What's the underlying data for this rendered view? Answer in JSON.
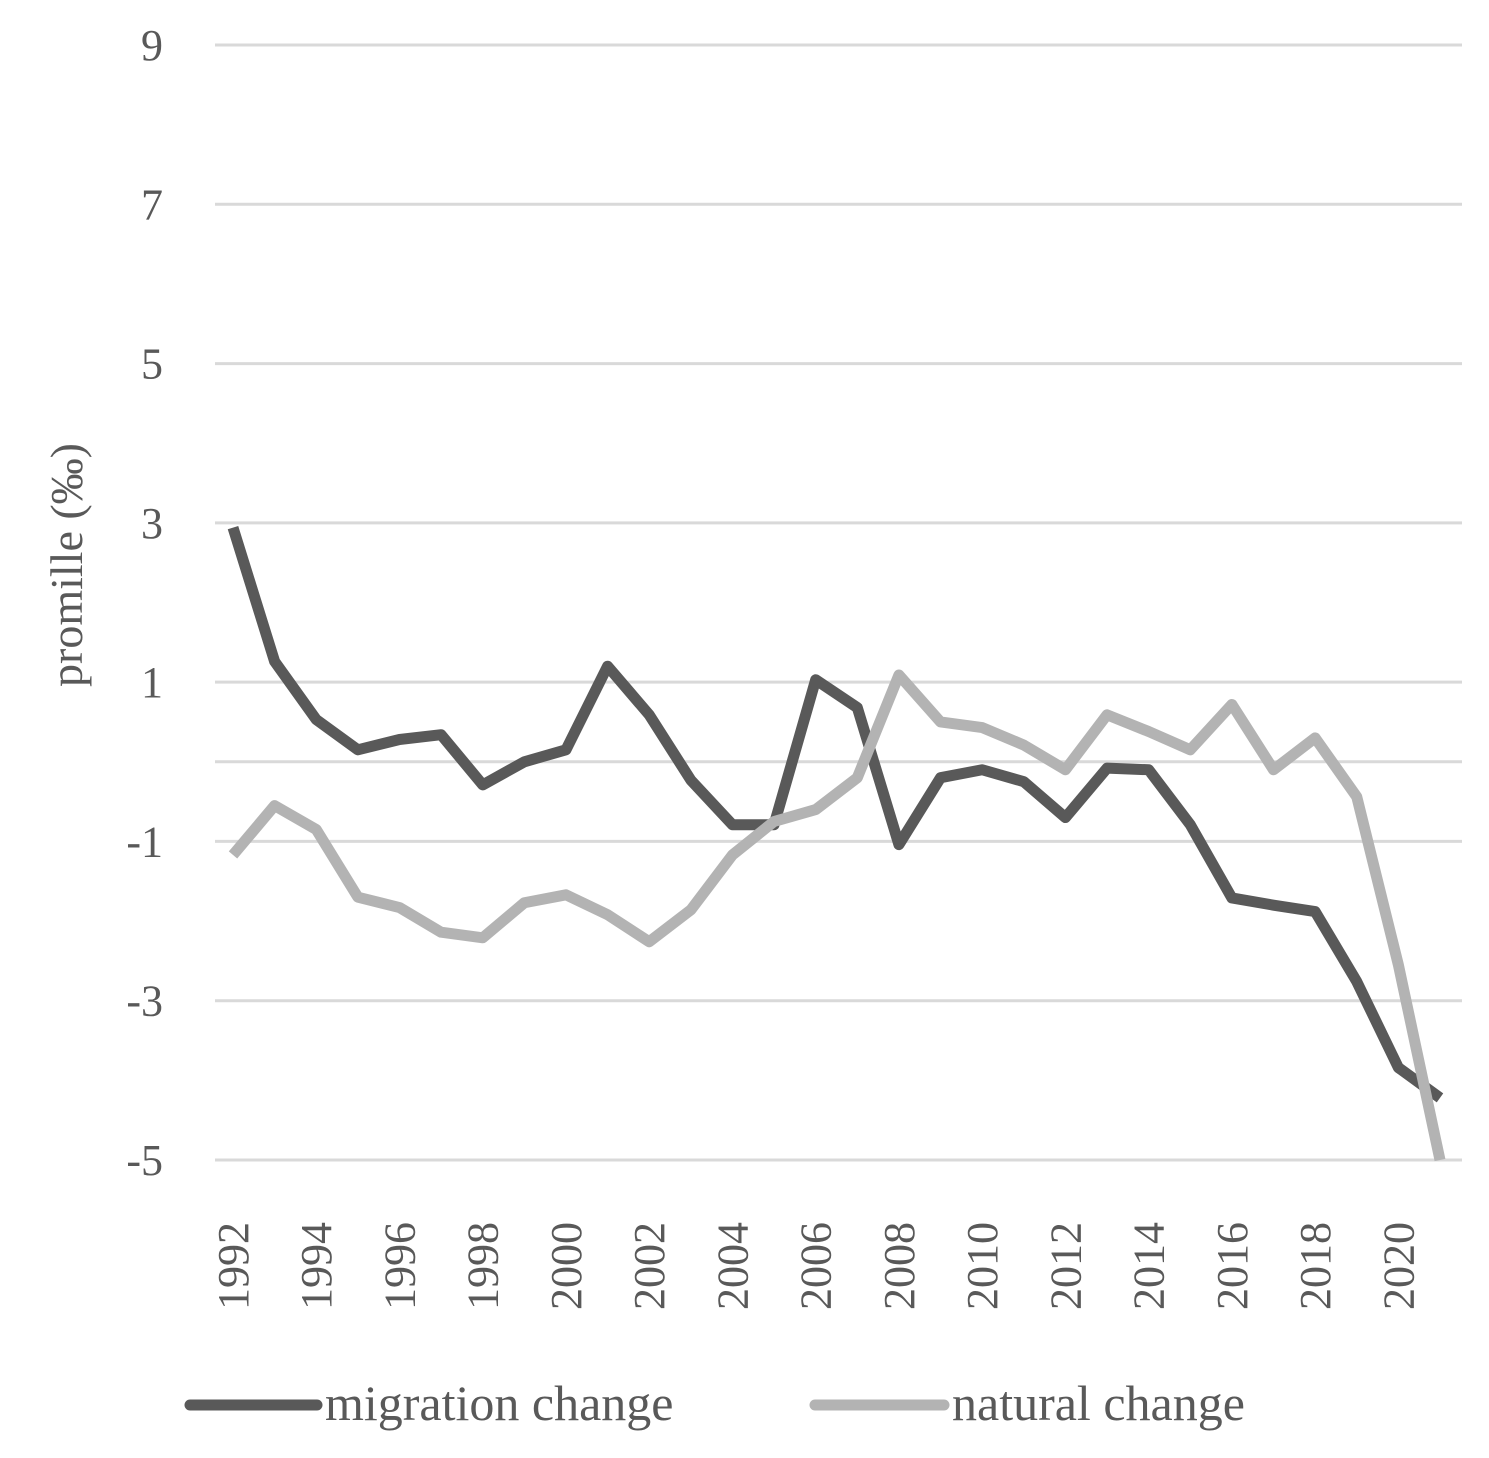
{
  "chart_data": {
    "type": "line",
    "title": "",
    "xlabel": "",
    "ylabel": "promille (‰)",
    "ylim": [
      -5,
      9
    ],
    "yticks": [
      9,
      7,
      5,
      3,
      1,
      -1,
      -3,
      -5
    ],
    "gridlines": [
      9,
      7,
      5,
      3,
      1,
      0,
      -1,
      -3,
      -5
    ],
    "x": [
      1992,
      1993,
      1994,
      1995,
      1996,
      1997,
      1998,
      1999,
      2000,
      2001,
      2002,
      2003,
      2004,
      2005,
      2006,
      2007,
      2008,
      2009,
      2010,
      2011,
      2012,
      2013,
      2014,
      2015,
      2016,
      2017,
      2018,
      2019,
      2020,
      2021
    ],
    "xtick_labels": [
      "1992",
      "1994",
      "1996",
      "1998",
      "2000",
      "2002",
      "2004",
      "2006",
      "2008",
      "2010",
      "2012",
      "2014",
      "2016",
      "2018",
      "2020"
    ],
    "legend_position": "bottom",
    "series": [
      {
        "name": "migration change",
        "color": "#595959",
        "values": [
          2.94,
          1.26,
          0.53,
          0.15,
          0.28,
          0.34,
          -0.29,
          0.0,
          0.15,
          1.2,
          0.59,
          -0.23,
          -0.79,
          -0.79,
          1.03,
          0.68,
          -1.04,
          -0.2,
          -0.1,
          -0.25,
          -0.7,
          -0.08,
          -0.1,
          -0.79,
          -1.71,
          -1.8,
          -1.88,
          -2.76,
          -3.84,
          -4.22
        ]
      },
      {
        "name": "natural change",
        "color": "#b3b3b3",
        "values": [
          -1.17,
          -0.55,
          -0.85,
          -1.7,
          -1.83,
          -2.14,
          -2.21,
          -1.77,
          -1.67,
          -1.92,
          -2.26,
          -1.86,
          -1.17,
          -0.75,
          -0.6,
          -0.2,
          1.09,
          0.5,
          0.43,
          0.21,
          -0.1,
          0.59,
          0.38,
          0.15,
          0.72,
          -0.1,
          0.3,
          -0.44,
          -2.55,
          -5.0
        ]
      }
    ]
  }
}
